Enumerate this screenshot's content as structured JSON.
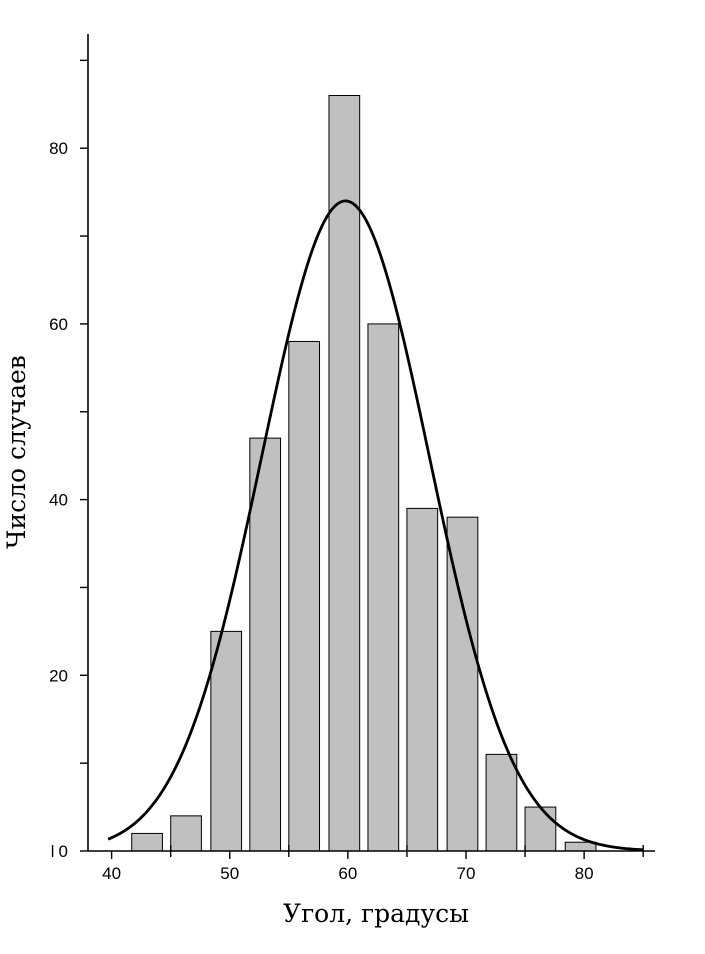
{
  "chart_data": {
    "type": "bar",
    "xlabel": "Угол, градусы",
    "ylabel": "Число случаев",
    "xlim": [
      38,
      86
    ],
    "ylim": [
      0,
      93
    ],
    "x_ticks": [
      40,
      50,
      60,
      70,
      80
    ],
    "y_ticks": [
      0,
      20,
      40,
      60,
      80
    ],
    "bar_width": 2.6,
    "bins": [
      {
        "x": 43.0,
        "value": 2
      },
      {
        "x": 46.3,
        "value": 4
      },
      {
        "x": 49.7,
        "value": 25
      },
      {
        "x": 53.0,
        "value": 47
      },
      {
        "x": 56.3,
        "value": 58
      },
      {
        "x": 59.7,
        "value": 86
      },
      {
        "x": 63.0,
        "value": 60
      },
      {
        "x": 66.3,
        "value": 39
      },
      {
        "x": 69.7,
        "value": 38
      },
      {
        "x": 73.0,
        "value": 11
      },
      {
        "x": 76.3,
        "value": 5
      },
      {
        "x": 79.7,
        "value": 1
      }
    ],
    "fit": {
      "type": "gaussian",
      "peak": 74,
      "center": 59.8,
      "sigma": 7.1,
      "x_range": [
        39.7,
        85
      ]
    },
    "grid": false,
    "legend": "none"
  }
}
